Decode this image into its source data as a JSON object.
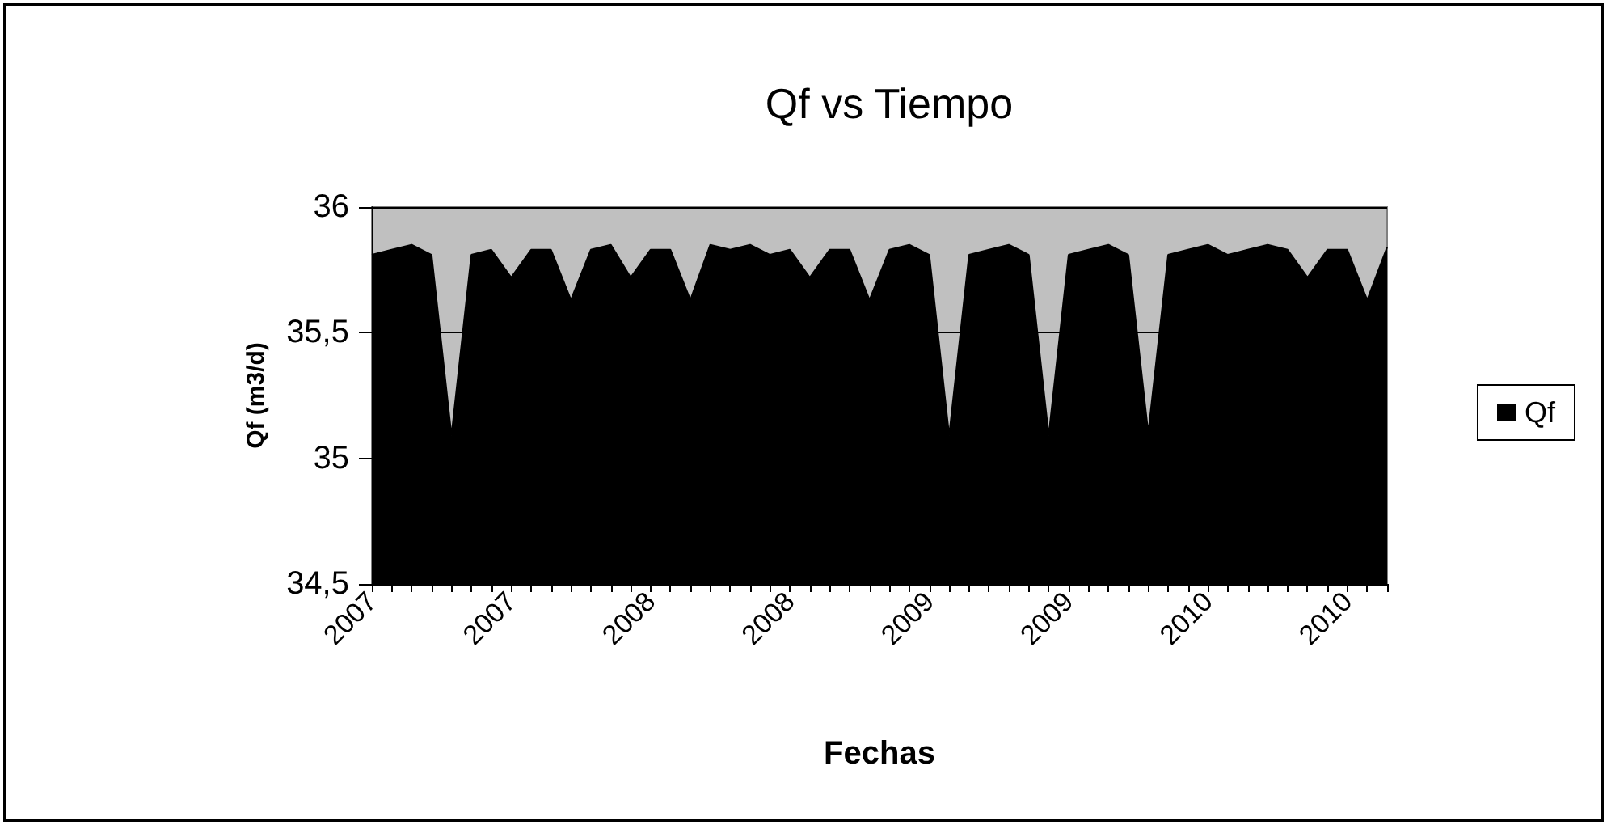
{
  "chart_data": {
    "type": "area",
    "title": "Qf vs Tiempo",
    "xlabel": "Fechas",
    "ylabel": "Qf (m3/d)",
    "categories": [
      "2007",
      null,
      null,
      null,
      null,
      null,
      null,
      "2007",
      null,
      null,
      null,
      null,
      null,
      null,
      "2008",
      null,
      null,
      null,
      null,
      null,
      null,
      "2008",
      null,
      null,
      null,
      null,
      null,
      null,
      "2009",
      null,
      null,
      null,
      null,
      null,
      null,
      "2009",
      null,
      null,
      null,
      null,
      null,
      null,
      "2010",
      null,
      null,
      null,
      null,
      null,
      null,
      "2010",
      null,
      null
    ],
    "series": [
      {
        "name": "Qf",
        "color": "#000000",
        "values": [
          35.81,
          35.83,
          35.85,
          35.81,
          35.09,
          35.81,
          35.83,
          35.72,
          35.83,
          35.83,
          35.63,
          35.83,
          35.85,
          35.72,
          35.83,
          35.83,
          35.63,
          35.85,
          35.83,
          35.85,
          35.81,
          35.83,
          35.72,
          35.83,
          35.83,
          35.63,
          35.83,
          35.85,
          35.81,
          35.09,
          35.81,
          35.83,
          35.85,
          35.81,
          35.09,
          35.81,
          35.83,
          35.85,
          35.81,
          35.1,
          35.81,
          35.83,
          35.85,
          35.81,
          35.83,
          35.85,
          35.83,
          35.72,
          35.83,
          35.83,
          35.63,
          35.84
        ]
      }
    ],
    "ylim": [
      34.5,
      36
    ],
    "yticks": [
      {
        "value": 34.5,
        "label": "34,5"
      },
      35,
      {
        "value": 35.5,
        "label": "35,5"
      },
      36
    ],
    "grid": "y",
    "legend": "right"
  }
}
